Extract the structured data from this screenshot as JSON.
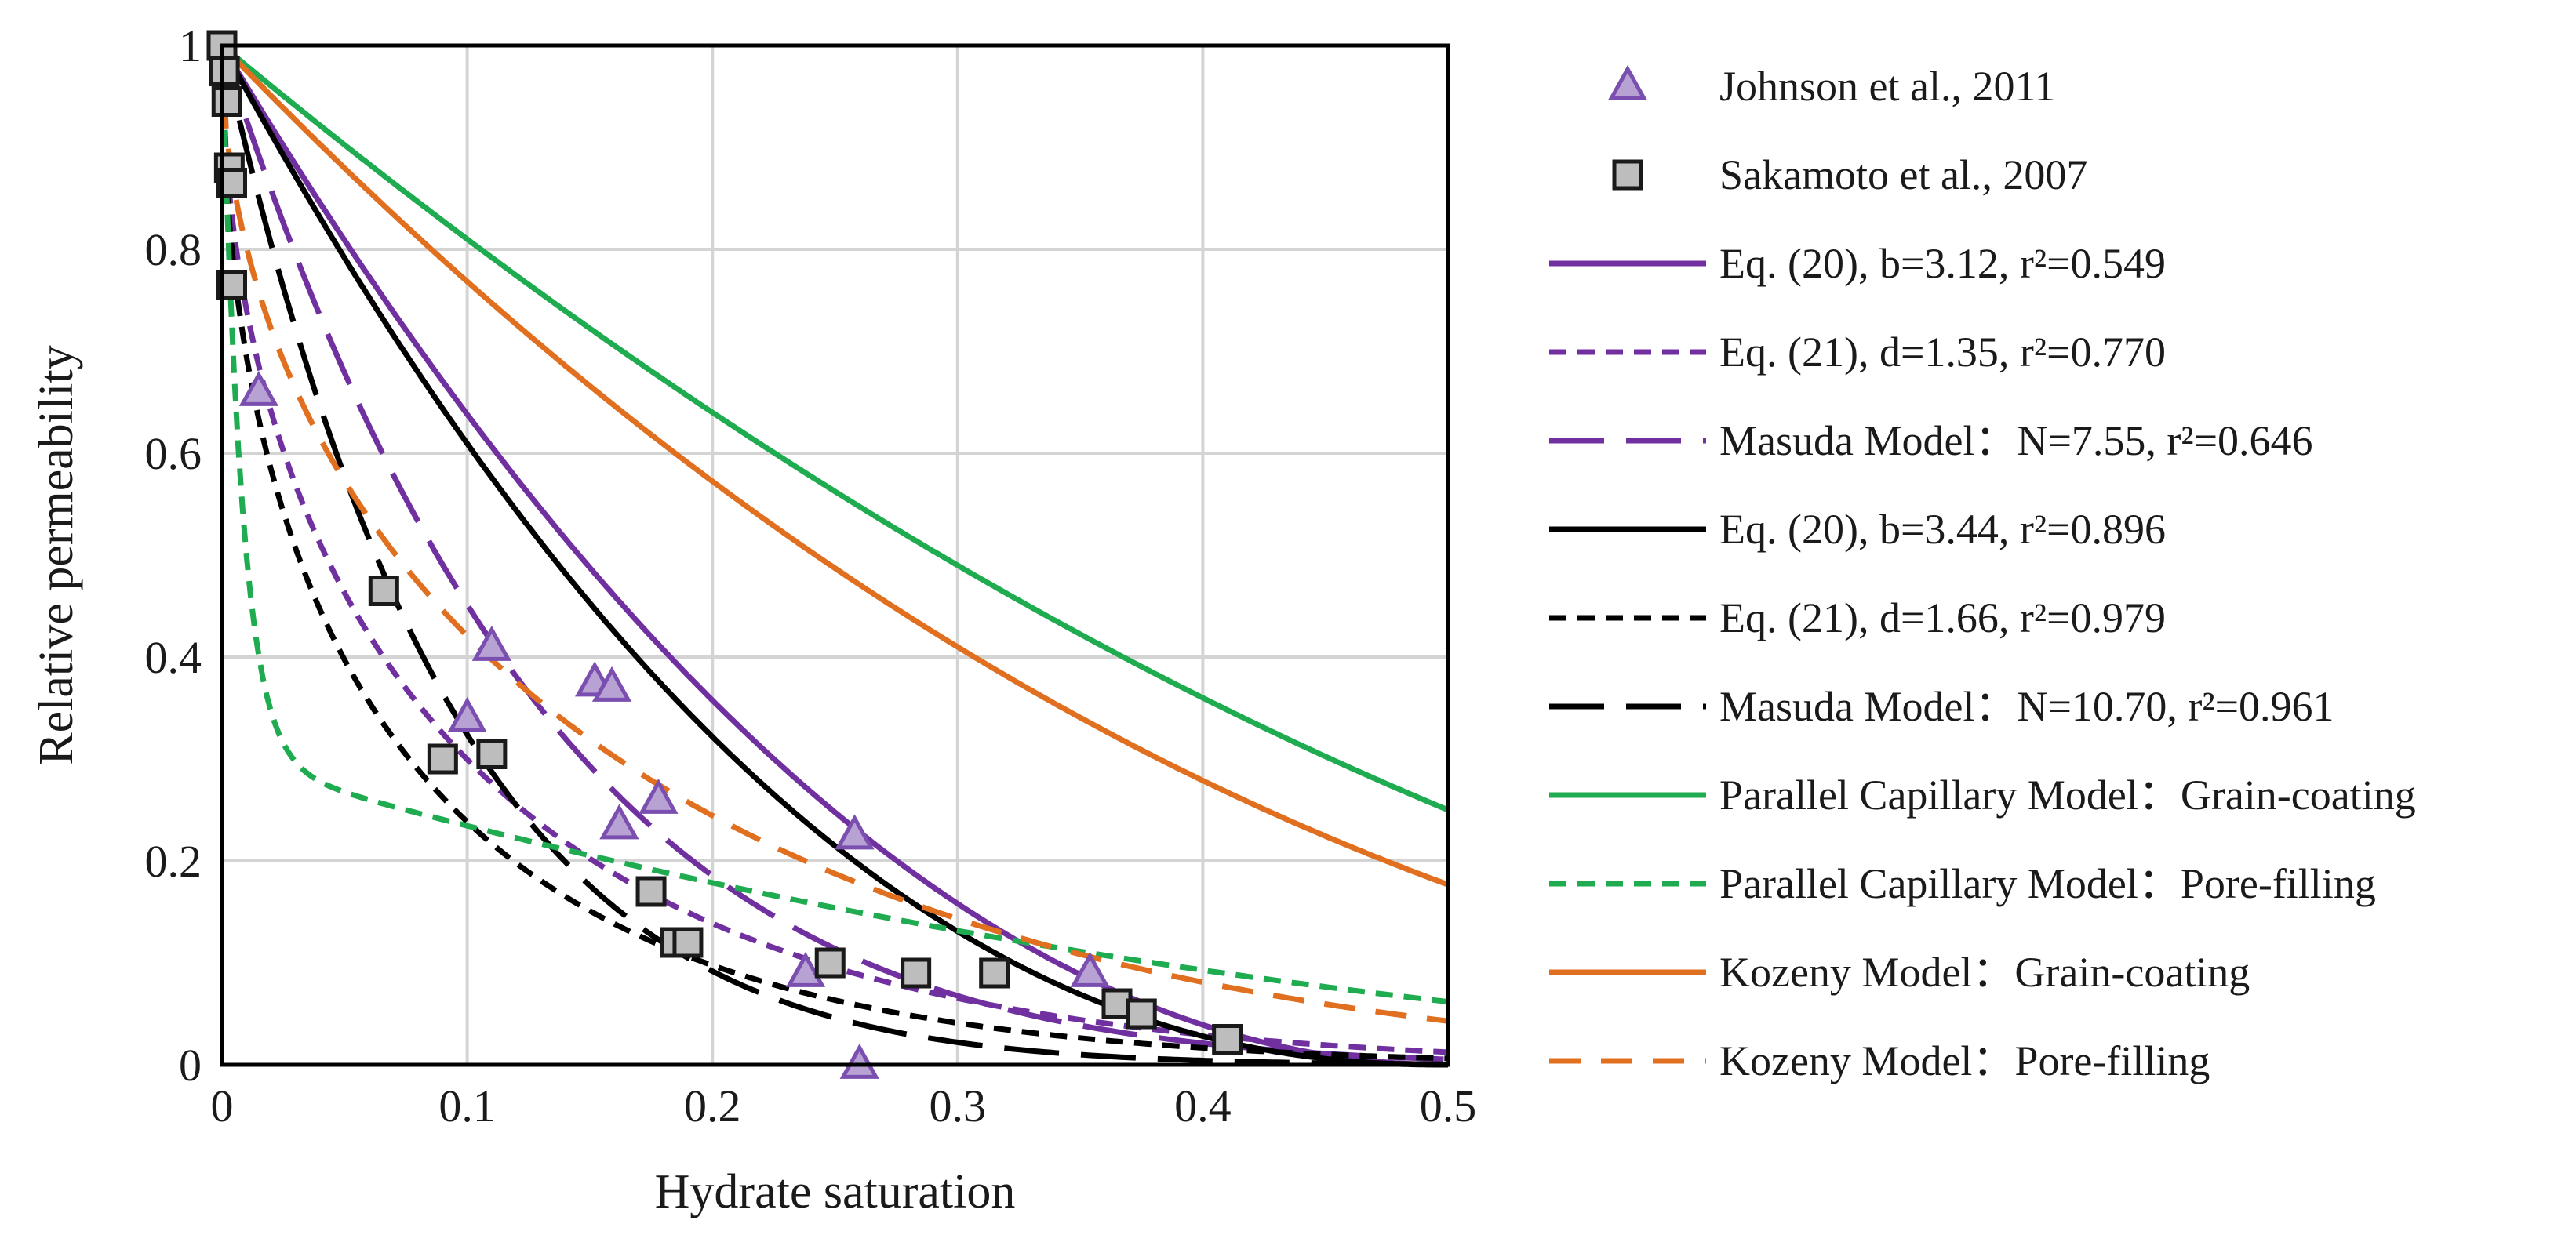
{
  "chart_data": {
    "type": "line",
    "title": "",
    "xlabel": "Hydrate saturation",
    "ylabel": "Relative permeability",
    "xlim": [
      0,
      0.5
    ],
    "ylim": [
      0,
      1
    ],
    "grid": true,
    "legend_position": "right-outside",
    "x_ticks": [
      0,
      0.1,
      0.2,
      0.3,
      0.4,
      0.5
    ],
    "x_tick_labels": [
      "0",
      "0.1",
      "0.2",
      "0.3",
      "0.4",
      "0.5"
    ],
    "y_ticks": [
      0,
      0.2,
      0.4,
      0.6,
      0.8,
      1
    ],
    "y_tick_labels": [
      "0",
      "0.2",
      "0.4",
      "0.6",
      "0.8",
      "1"
    ],
    "scatter_series": [
      {
        "name": "Johnson et al., 2011",
        "marker": "triangle",
        "color": "#7b4fb0",
        "fill": "#b8a2d4",
        "points": [
          [
            0.015,
            0.66
          ],
          [
            0.1,
            0.34
          ],
          [
            0.11,
            0.41
          ],
          [
            0.152,
            0.375
          ],
          [
            0.159,
            0.37
          ],
          [
            0.162,
            0.235
          ],
          [
            0.178,
            0.26
          ],
          [
            0.238,
            0.09
          ],
          [
            0.258,
            0.225
          ],
          [
            0.26,
            0.0
          ],
          [
            0.354,
            0.09
          ]
        ]
      },
      {
        "name": "Sakamoto et al., 2007",
        "marker": "square",
        "color": "#1a1a1a",
        "fill": "#bdbdbd",
        "points": [
          [
            0.0,
            1.0
          ],
          [
            0.001,
            0.975
          ],
          [
            0.002,
            0.945
          ],
          [
            0.003,
            0.88
          ],
          [
            0.004,
            0.865
          ],
          [
            0.004,
            0.765
          ],
          [
            0.066,
            0.465
          ],
          [
            0.09,
            0.3
          ],
          [
            0.11,
            0.305
          ],
          [
            0.175,
            0.17
          ],
          [
            0.185,
            0.12
          ],
          [
            0.19,
            0.12
          ],
          [
            0.248,
            0.1
          ],
          [
            0.283,
            0.09
          ],
          [
            0.315,
            0.09
          ],
          [
            0.365,
            0.06
          ],
          [
            0.375,
            0.05
          ],
          [
            0.41,
            0.025
          ]
        ]
      }
    ],
    "series": [
      {
        "name": "Eq. (20), b=3.12, r²=0.549",
        "color": "#7030a0",
        "dash": "solid",
        "model": "eq20",
        "param": 3.12
      },
      {
        "name": "Eq. (21), d=1.35, r²=0.770",
        "color": "#7030a0",
        "dash": "short",
        "model": "eq21",
        "param": 1.35
      },
      {
        "name": "Masuda Model：N=7.55, r²=0.646",
        "color": "#7030a0",
        "dash": "long",
        "model": "masuda",
        "param": 7.55
      },
      {
        "name": "Eq. (20), b=3.44, r²=0.896",
        "color": "#000000",
        "dash": "solid",
        "model": "eq20",
        "param": 3.44
      },
      {
        "name": "Eq. (21), d=1.66, r²=0.979",
        "color": "#000000",
        "dash": "short",
        "model": "eq21",
        "param": 1.66
      },
      {
        "name": "Masuda Model：N=10.70, r²=0.961",
        "color": "#000000",
        "dash": "long",
        "model": "masuda",
        "param": 10.7
      },
      {
        "name": "Parallel Capillary Model：Grain-coating",
        "color": "#1fab4f",
        "dash": "solid",
        "model": "pc_gc",
        "param": 0
      },
      {
        "name": "Parallel Capillary Model：Pore-filling",
        "color": "#1fab4f",
        "dash": "short",
        "model": "pc_pf",
        "param": 0
      },
      {
        "name": "Kozeny Model：Grain-coating",
        "color": "#e07020",
        "dash": "solid",
        "model": "kz_gc",
        "param": 0
      },
      {
        "name": "Kozeny Model：Pore-filling",
        "color": "#e07020",
        "dash": "medium",
        "model": "kz_pf",
        "param": 0
      }
    ]
  }
}
